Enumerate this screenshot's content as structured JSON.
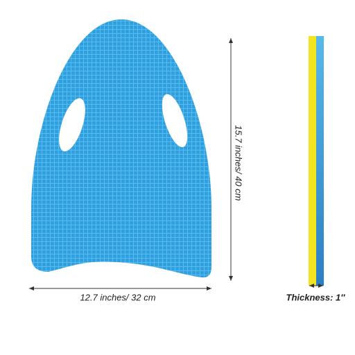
{
  "dimensions": {
    "height": "15.7 inches/ 40 cm",
    "width": "12.7 inches/ 32 cm",
    "thickness": "Thickness: 1″"
  }
}
